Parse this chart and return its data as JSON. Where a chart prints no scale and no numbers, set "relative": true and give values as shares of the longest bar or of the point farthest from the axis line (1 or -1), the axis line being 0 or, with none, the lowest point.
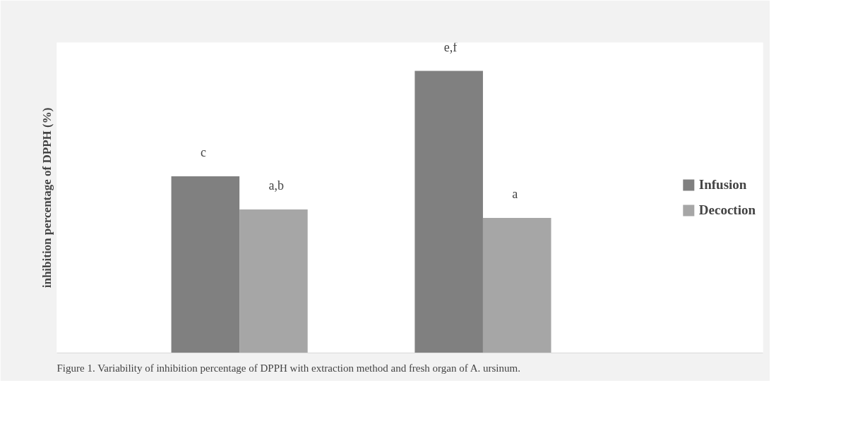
{
  "chart_data": {
    "type": "bar",
    "relative": true,
    "ylabel": "inhibition percentage of DPPH (%)",
    "categories": [
      null,
      null
    ],
    "series": [
      {
        "name": "Infusion",
        "color": "#808080",
        "values": [
          0.626,
          1
        ]
      },
      {
        "name": "Decoction",
        "color": "#a6a6a6",
        "values": [
          0.509,
          0.479
        ]
      }
    ],
    "legend": "right",
    "grid": false,
    "annotations": [
      "c",
      "a,b",
      "e,f",
      "a",
      "Figure 1. Variability of inhibition percentage of DPPH with extraction method and fresh organ of A. ursinum."
    ]
  }
}
